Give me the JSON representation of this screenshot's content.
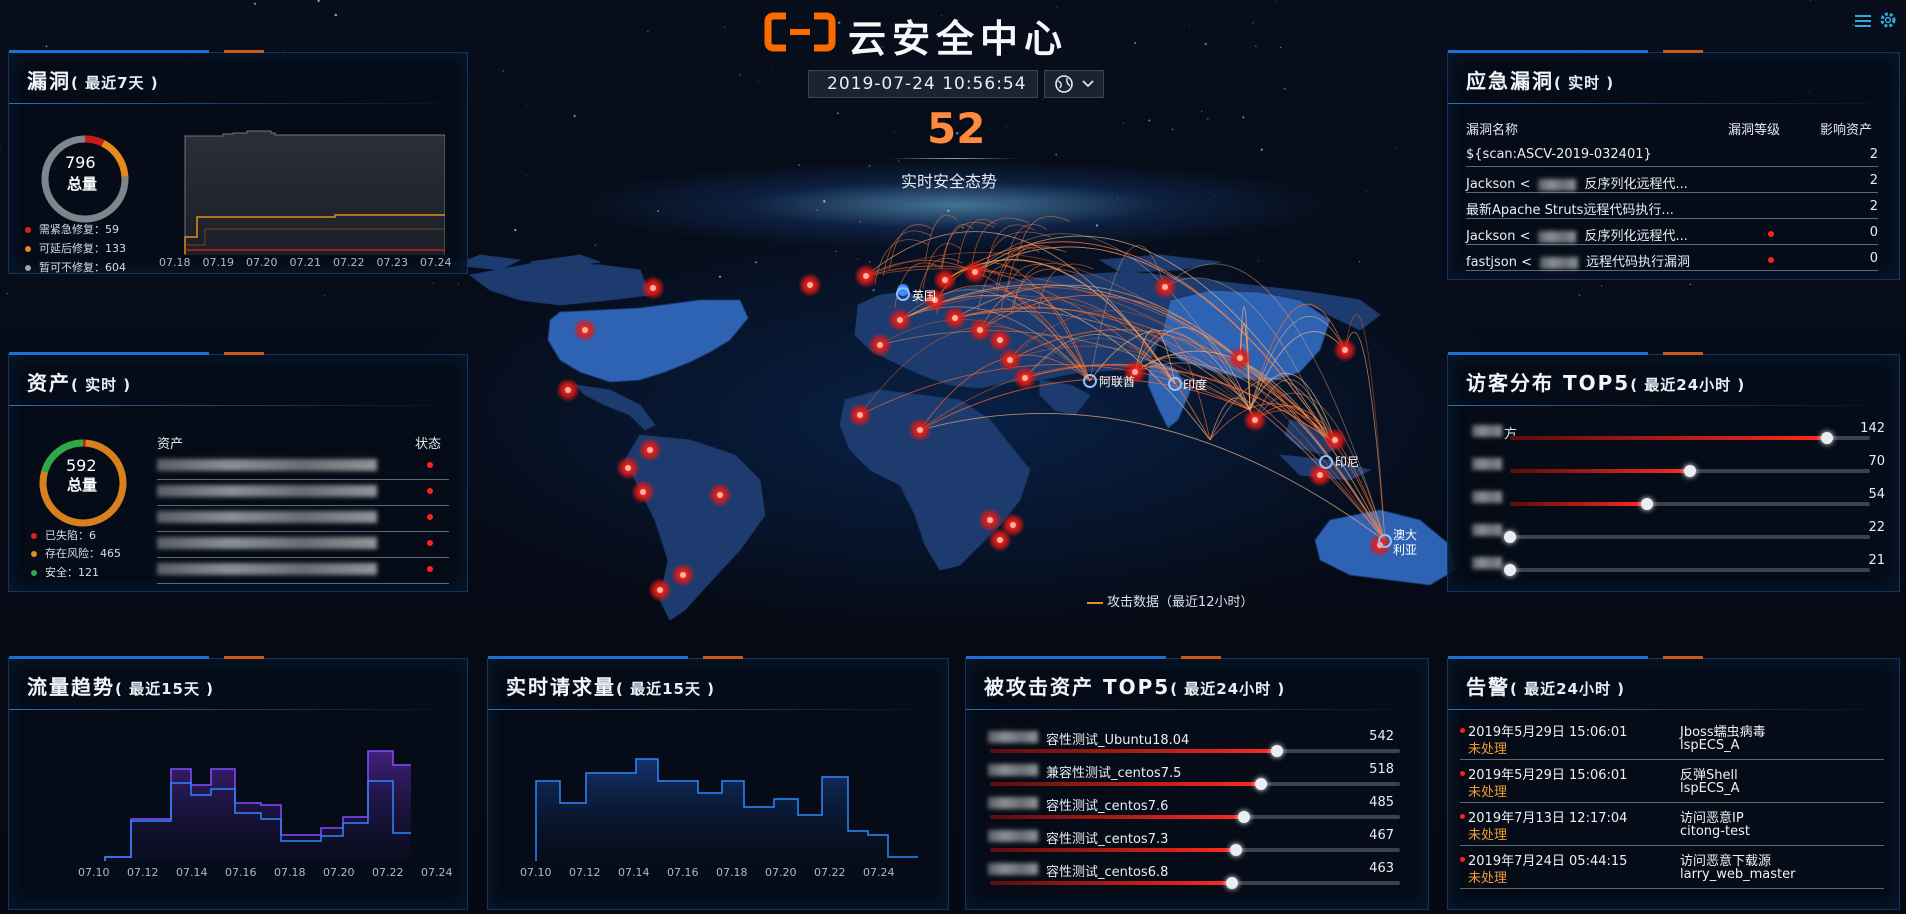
{
  "header": {
    "title": "云安全中心",
    "datetime": "2019-07-24 10:56:54",
    "center_value": "52",
    "center_label": "实时安全态势"
  },
  "map": {
    "legend": "攻击数据（最近12小时）",
    "labels": [
      "英国",
      "阿联酋",
      "印度",
      "印尼",
      "澳大利亚"
    ]
  },
  "vuln": {
    "title": "漏洞",
    "subtitle": "( 最近7天 )",
    "total_value": "796",
    "total_label": "总量",
    "legend": [
      {
        "label": "需紧急修复：59",
        "color": "#e01f1f"
      },
      {
        "label": "可延后修复：133",
        "color": "#e58a1f"
      },
      {
        "label": "暂可不修复：604",
        "color": "#9aa3ad"
      }
    ],
    "gauge": {
      "segments": [
        59,
        133,
        604
      ]
    },
    "x_ticks": [
      "07.18",
      "07.19",
      "07.20",
      "07.21",
      "07.22",
      "07.23",
      "07.24"
    ]
  },
  "assets": {
    "title": "资产",
    "subtitle": "( 实时 )",
    "total_value": "592",
    "total_label": "总量",
    "legend": [
      {
        "label": "已失陷：6",
        "color": "#e01f1f"
      },
      {
        "label": "存在风险：465",
        "color": "#e58a1f"
      },
      {
        "label": "安全：121",
        "color": "#2fa84a"
      }
    ],
    "gauge": {
      "segments": [
        6,
        465,
        121
      ]
    },
    "col_asset": "资产",
    "col_status": "状态",
    "row_count_blurred": 5
  },
  "emergency": {
    "title": "应急漏洞",
    "subtitle": "( 实时 )",
    "headers": [
      "漏洞名称",
      "漏洞等级",
      "影响资产"
    ],
    "rows": [
      {
        "name_a": "${scan:ASCV-2019-032401}",
        "name_b": "",
        "blur": false,
        "level_dot": false,
        "count": "2"
      },
      {
        "name_a": "Jackson <",
        "name_b": "反序列化远程代...",
        "blur": true,
        "level_dot": false,
        "count": "2"
      },
      {
        "name_a": "最新Apache Struts远程代码执行...",
        "name_b": "",
        "blur": false,
        "level_dot": false,
        "count": "2"
      },
      {
        "name_a": "Jackson <",
        "name_b": "反序列化远程代...",
        "blur": true,
        "level_dot": true,
        "count": "0"
      },
      {
        "name_a": "fastjson <",
        "name_b": "远程代码执行漏洞",
        "blur": true,
        "level_dot": true,
        "count": "0"
      }
    ]
  },
  "visitors": {
    "title": "访客分布 TOP5",
    "subtitle": "( 最近24小时 )",
    "items": [
      {
        "label": "方",
        "value": "142",
        "fraction": 0.88
      },
      {
        "label": "",
        "value": "70",
        "fraction": 0.5
      },
      {
        "label": "",
        "value": "54",
        "fraction": 0.38
      },
      {
        "label": "",
        "value": "22",
        "fraction": 0.0
      },
      {
        "label": "",
        "value": "21",
        "fraction": 0.0
      }
    ]
  },
  "traffic": {
    "title": "流量趋势",
    "subtitle": "( 最近15天 )",
    "x_ticks": [
      "07.10",
      "07.12",
      "07.14",
      "07.16",
      "07.18",
      "07.20",
      "07.22",
      "07.24"
    ]
  },
  "requests": {
    "title": "实时请求量",
    "subtitle": "( 最近15天 )",
    "x_ticks": [
      "07.10",
      "07.12",
      "07.14",
      "07.16",
      "07.18",
      "07.20",
      "07.22",
      "07.24"
    ]
  },
  "attacked": {
    "title": "被攻击资产 TOP5",
    "subtitle": "( 最近24小时 )",
    "items": [
      {
        "label": "容性测试_Ubuntu18.04",
        "value": "542",
        "fraction": 0.7
      },
      {
        "label": "兼容性测试_centos7.5",
        "value": "518",
        "fraction": 0.66
      },
      {
        "label": "容性测试_centos7.6",
        "value": "485",
        "fraction": 0.62
      },
      {
        "label": "容性测试_centos7.3",
        "value": "467",
        "fraction": 0.6
      },
      {
        "label": "容性测试_centos6.8",
        "value": "463",
        "fraction": 0.59
      }
    ]
  },
  "alerts": {
    "title": "告警",
    "subtitle": "( 最近24小时 )",
    "items": [
      {
        "time": "2019年5月29日 15:06:01",
        "status": "未处理",
        "type": "Jboss蠕虫病毒",
        "host": "lspECS_A"
      },
      {
        "time": "2019年5月29日 15:06:01",
        "status": "未处理",
        "type": "反弹Shell",
        "host": "lspECS_A"
      },
      {
        "time": "2019年7月13日 12:17:04",
        "status": "未处理",
        "type": "访问恶意IP",
        "host": "citong-test"
      },
      {
        "time": "2019年7月24日 05:44:15",
        "status": "未处理",
        "type": "访问恶意下载源",
        "host": "larry_web_master"
      }
    ]
  },
  "colors": {
    "accent": "#1f6fd1",
    "orange": "#f07b1f",
    "red": "#ff2a20",
    "purple": "#8a4bff",
    "blue": "#2f86ff"
  }
}
